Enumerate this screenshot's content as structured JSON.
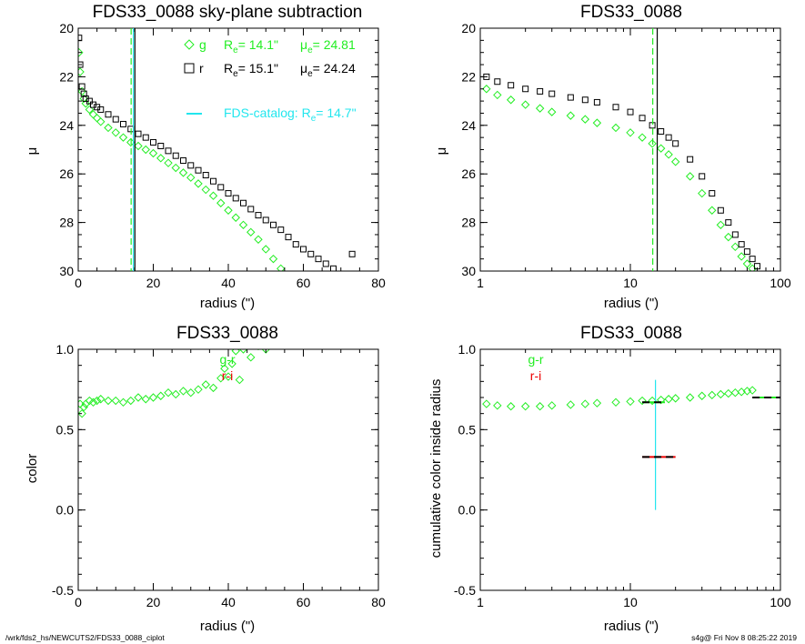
{
  "colors": {
    "green": "#22ee22",
    "black": "#000000",
    "cyan": "#22e6ee",
    "red": "#ee0000"
  },
  "footer": {
    "left": "/wrk/fds2_hs/NEWCUTS2/FDS33_0088_ciplot",
    "right": "s4g@  Fri Nov  8 08:25:22 2019"
  },
  "chart_data": [
    {
      "type": "scatter",
      "title": "FDS33_0088 sky-plane subtraction",
      "xlabel": "radius (\")",
      "ylabel": "μ",
      "xlim": [
        0,
        80
      ],
      "ylim": [
        30,
        20
      ],
      "y_inverted": true,
      "xscale": "linear",
      "xticks": [
        0,
        20,
        40,
        60,
        80
      ],
      "yticks": [
        20,
        22,
        24,
        26,
        28,
        30
      ],
      "legend": {
        "placement": "top-right",
        "entries": [
          {
            "symbol": "diamond",
            "color": "green",
            "band": "g",
            "re_label": "R",
            "re_sub": "e",
            "re_value": "=  14.1\"",
            "mu_label": "μ",
            "mu_sub": "e",
            "mu_value": "= 24.81"
          },
          {
            "symbol": "square",
            "color": "black",
            "band": "r",
            "re_label": "R",
            "re_sub": "e",
            "re_value": "=  15.1\"",
            "mu_label": "μ",
            "mu_sub": "e",
            "mu_value": "= 24.24"
          }
        ],
        "catalog": {
          "label": "FDS-catalog: R",
          "sub": "e",
          "value": "=  14.7\"",
          "color": "cyan"
        }
      },
      "vlines": [
        {
          "x": 14.1,
          "color": "green",
          "style": "dashed"
        },
        {
          "x": 15.1,
          "color": "black",
          "style": "solid"
        },
        {
          "x": 14.7,
          "color": "cyan",
          "style": "solid"
        }
      ],
      "series": [
        {
          "band": "g",
          "marker": "diamond",
          "color": "green",
          "x": [
            0.2,
            0.5,
            1,
            1.5,
            2,
            3,
            4,
            5,
            6,
            8,
            10,
            12,
            14,
            16,
            18,
            20,
            22,
            24,
            26,
            28,
            30,
            32,
            34,
            36,
            38,
            40,
            42,
            44,
            46,
            48,
            50,
            52,
            54
          ],
          "y": [
            21.0,
            21.8,
            22.6,
            22.9,
            23.1,
            23.35,
            23.55,
            23.7,
            23.85,
            24.1,
            24.3,
            24.5,
            24.7,
            24.85,
            25.0,
            25.15,
            25.35,
            25.55,
            25.75,
            25.95,
            26.15,
            26.4,
            26.65,
            26.9,
            27.2,
            27.5,
            27.8,
            28.1,
            28.4,
            28.7,
            29.1,
            29.5,
            29.9
          ]
        },
        {
          "band": "r",
          "marker": "square",
          "color": "black",
          "x": [
            0.2,
            0.5,
            1,
            1.5,
            2,
            3,
            4,
            5,
            6,
            8,
            10,
            12,
            14,
            16,
            18,
            20,
            22,
            24,
            26,
            28,
            30,
            32,
            34,
            36,
            38,
            40,
            42,
            44,
            46,
            48,
            50,
            52,
            54,
            56,
            58,
            60,
            62,
            64,
            66,
            68,
            73
          ],
          "y": [
            20.4,
            21.5,
            22.4,
            22.7,
            22.9,
            23.0,
            23.15,
            23.25,
            23.35,
            23.55,
            23.75,
            23.95,
            24.15,
            24.35,
            24.5,
            24.7,
            24.85,
            25.05,
            25.25,
            25.45,
            25.65,
            25.85,
            26.05,
            26.3,
            26.55,
            26.8,
            27.0,
            27.2,
            27.45,
            27.7,
            27.9,
            28.1,
            28.3,
            28.6,
            28.9,
            29.1,
            29.3,
            29.5,
            29.7,
            29.9,
            29.3
          ]
        }
      ]
    },
    {
      "type": "scatter",
      "title": "FDS33_0088",
      "xlabel": "radius (\")",
      "ylabel": "μ",
      "xlim": [
        1,
        100
      ],
      "ylim": [
        30,
        20
      ],
      "y_inverted": true,
      "xscale": "log",
      "xticks": [
        1,
        10,
        100
      ],
      "yticks": [
        20,
        22,
        24,
        26,
        28,
        30
      ],
      "vlines": [
        {
          "x": 14.1,
          "color": "green",
          "style": "dashed"
        },
        {
          "x": 15.1,
          "color": "black",
          "style": "solid"
        }
      ],
      "series": [
        {
          "band": "g",
          "marker": "diamond",
          "color": "green",
          "x": [
            1.1,
            1.3,
            1.6,
            2,
            2.5,
            3,
            4,
            5,
            6,
            8,
            10,
            12,
            14,
            16,
            18,
            20,
            25,
            30,
            35,
            40,
            45,
            50,
            55,
            60,
            65
          ],
          "y": [
            22.5,
            22.75,
            22.95,
            23.15,
            23.3,
            23.45,
            23.6,
            23.75,
            23.9,
            24.1,
            24.3,
            24.5,
            24.75,
            24.95,
            25.2,
            25.5,
            26.1,
            26.8,
            27.5,
            28.1,
            28.6,
            29.0,
            29.4,
            29.7,
            29.9
          ]
        },
        {
          "band": "r",
          "marker": "square",
          "color": "black",
          "x": [
            1.1,
            1.3,
            1.6,
            2,
            2.5,
            3,
            4,
            5,
            6,
            8,
            10,
            12,
            14,
            16,
            18,
            20,
            25,
            30,
            35,
            40,
            45,
            50,
            55,
            60,
            65,
            70
          ],
          "y": [
            22.0,
            22.2,
            22.35,
            22.5,
            22.6,
            22.7,
            22.85,
            22.95,
            23.05,
            23.25,
            23.45,
            23.7,
            24.0,
            24.25,
            24.5,
            24.75,
            25.4,
            26.1,
            26.8,
            27.5,
            28.0,
            28.5,
            28.9,
            29.2,
            29.5,
            29.8
          ]
        }
      ]
    },
    {
      "type": "scatter",
      "title": "FDS33_0088",
      "xlabel": "radius (\")",
      "ylabel": "color",
      "xlim": [
        0,
        80
      ],
      "ylim": [
        -0.5,
        1.0
      ],
      "xscale": "linear",
      "xticks": [
        0,
        20,
        40,
        60,
        80
      ],
      "yticks": [
        -0.5,
        0.0,
        0.5,
        1.0
      ],
      "ytick_labels": [
        "-0.5",
        "0.0",
        "0.5",
        "1.0"
      ],
      "legend": {
        "placement": "top-center",
        "entries": [
          {
            "label": "g-r",
            "color": "green"
          },
          {
            "label": "r-i",
            "color": "red"
          }
        ]
      },
      "series": [
        {
          "name": "g-r",
          "marker": "diamond",
          "color": "green",
          "x": [
            0.5,
            1,
            1.5,
            2,
            3,
            4,
            5,
            6,
            8,
            10,
            12,
            14,
            16,
            18,
            20,
            22,
            24,
            26,
            28,
            30,
            32,
            34,
            36,
            38,
            39,
            40,
            41,
            42,
            43,
            44,
            46,
            48,
            50
          ],
          "y": [
            0.66,
            0.6,
            0.64,
            0.66,
            0.68,
            0.67,
            0.68,
            0.69,
            0.68,
            0.68,
            0.67,
            0.68,
            0.7,
            0.69,
            0.7,
            0.71,
            0.73,
            0.72,
            0.74,
            0.73,
            0.75,
            0.78,
            0.76,
            0.82,
            0.88,
            0.83,
            0.91,
            0.99,
            0.81,
            1.0,
            0.95,
            1.02,
            1.0
          ]
        },
        {
          "name": "r-i",
          "marker": "diamond",
          "color": "red",
          "x": [],
          "y": []
        }
      ]
    },
    {
      "type": "scatter",
      "title": "FDS33_0088",
      "xlabel": "radius (\")",
      "ylabel": "cumulative color inside radius",
      "xlim": [
        1,
        100
      ],
      "ylim": [
        -0.5,
        1.0
      ],
      "xscale": "log",
      "xticks": [
        1,
        10,
        100
      ],
      "yticks": [
        -0.5,
        0.0,
        0.5,
        1.0
      ],
      "ytick_labels": [
        "-0.5",
        "0.0",
        "0.5",
        "1.0"
      ],
      "legend": {
        "placement": "top-center",
        "entries": [
          {
            "label": "g-r",
            "color": "green"
          },
          {
            "label": "r-i",
            "color": "red"
          }
        ]
      },
      "cyan_vline": {
        "x": 14.7,
        "y0": 0.0,
        "y1": 0.81
      },
      "hsegments": [
        {
          "x0": 12,
          "x1": 17,
          "y": 0.67,
          "dash_colors": [
            "black",
            "green"
          ]
        },
        {
          "x0": 12,
          "x1": 20,
          "y": 0.33,
          "dash_colors": [
            "black",
            "red"
          ]
        },
        {
          "x0": 65,
          "x1": 100,
          "y": 0.7,
          "dash_colors": [
            "black",
            "green"
          ]
        }
      ],
      "series": [
        {
          "name": "g-r",
          "marker": "diamond",
          "color": "green",
          "x": [
            1.1,
            1.3,
            1.6,
            2,
            2.5,
            3,
            4,
            5,
            6,
            8,
            10,
            12,
            14,
            16,
            18,
            20,
            25,
            30,
            35,
            40,
            45,
            50,
            55,
            60,
            65
          ],
          "y": [
            0.66,
            0.65,
            0.645,
            0.645,
            0.645,
            0.65,
            0.655,
            0.66,
            0.665,
            0.67,
            0.675,
            0.68,
            0.68,
            0.685,
            0.69,
            0.695,
            0.7,
            0.71,
            0.715,
            0.72,
            0.725,
            0.73,
            0.735,
            0.74,
            0.745
          ]
        },
        {
          "name": "r-i",
          "marker": "diamond",
          "color": "red",
          "x": [],
          "y": []
        }
      ]
    }
  ]
}
